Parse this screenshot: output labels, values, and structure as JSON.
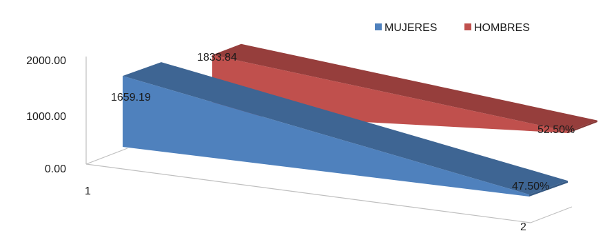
{
  "chart_data": {
    "type": "area",
    "x": [
      "1",
      "2"
    ],
    "y_ticks": [
      "0.00",
      "1000.00",
      "2000.00"
    ],
    "ylim": [
      0,
      2000
    ],
    "series": [
      {
        "name": "MUJERES",
        "color": "#4F81BD",
        "values": [
          1659.19,
          47.5
        ],
        "labels": [
          "1659.19",
          "47.50%"
        ]
      },
      {
        "name": "HOMBRES",
        "color": "#C0504D",
        "values": [
          1833.84,
          52.5
        ],
        "labels": [
          "1833.84",
          "52.50%"
        ]
      }
    ],
    "legend_position": "top-right",
    "grid": false
  }
}
